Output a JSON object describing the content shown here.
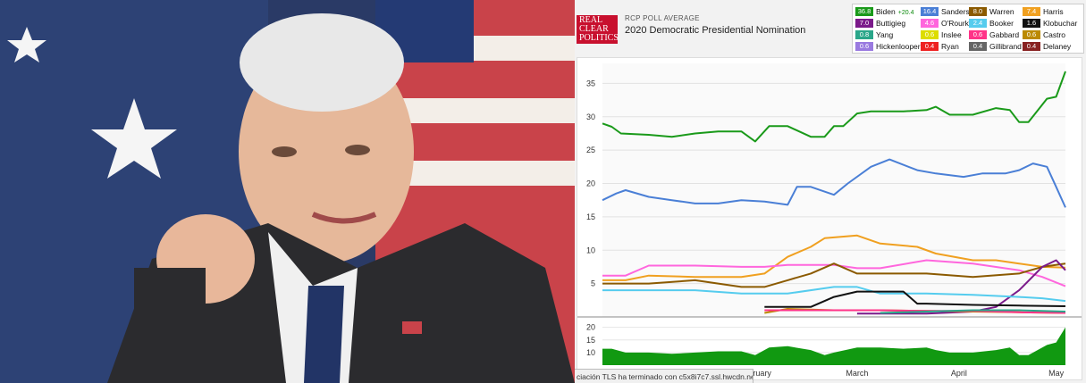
{
  "header": {
    "logo_lines": [
      "REAL",
      "CLEAR",
      "POLITICS"
    ],
    "poll_label": "RCP POLL AVERAGE",
    "title": "2020 Democratic Presidential Nomination"
  },
  "status_bar": {
    "text": "ciación TLS ha terminado con c5x8i7c7.ssl.hwcdn.net..."
  },
  "chart_data": {
    "type": "line",
    "title": "2020 Democratic Presidential Nomination",
    "y_ticks": [
      5,
      10,
      15,
      20,
      25,
      30,
      35
    ],
    "ylim": [
      0,
      38
    ],
    "x_labels": [
      "February",
      "March",
      "April",
      "May"
    ],
    "x_label_positions": [
      0.33,
      0.55,
      0.77,
      0.98
    ],
    "legend": [
      {
        "name": "Biden",
        "value": "36.8",
        "change": "+20.4",
        "color": "#1a9a1a"
      },
      {
        "name": "Sanders",
        "value": "16.4",
        "color": "#4a7fd6"
      },
      {
        "name": "Warren",
        "value": "8.0",
        "color": "#8b5a00"
      },
      {
        "name": "Harris",
        "value": "7.4",
        "color": "#f0a020"
      },
      {
        "name": "Buttigieg",
        "value": "7.0",
        "color": "#7b1a8a"
      },
      {
        "name": "O'Rourke",
        "value": "4.6",
        "color": "#ff66dd"
      },
      {
        "name": "Booker",
        "value": "2.4",
        "color": "#55ccee"
      },
      {
        "name": "Klobuchar",
        "value": "1.6",
        "color": "#111111"
      },
      {
        "name": "Yang",
        "value": "0.8",
        "color": "#2aa68a"
      },
      {
        "name": "Inslee",
        "value": "0.6",
        "color": "#dddd00"
      },
      {
        "name": "Gabbard",
        "value": "0.6",
        "color": "#ff3388"
      },
      {
        "name": "Castro",
        "value": "0.6",
        "color": "#bb8a00"
      },
      {
        "name": "Hickenlooper",
        "value": "0.6",
        "color": "#9a7ae0"
      },
      {
        "name": "Ryan",
        "value": "0.4",
        "color": "#ee2222"
      },
      {
        "name": "Gillibrand",
        "value": "0.4",
        "color": "#666666"
      },
      {
        "name": "Delaney",
        "value": "0.4",
        "color": "#882222"
      }
    ],
    "series": [
      {
        "name": "Biden",
        "color": "#1a9a1a",
        "x": [
          0,
          0.02,
          0.04,
          0.1,
          0.15,
          0.2,
          0.25,
          0.3,
          0.33,
          0.36,
          0.4,
          0.45,
          0.48,
          0.5,
          0.52,
          0.55,
          0.58,
          0.65,
          0.7,
          0.72,
          0.75,
          0.8,
          0.85,
          0.88,
          0.9,
          0.92,
          0.96,
          0.98,
          1.0
        ],
        "y": [
          29,
          28.5,
          27.5,
          27.3,
          27,
          27.5,
          27.8,
          27.8,
          26.3,
          28.6,
          28.6,
          27,
          27,
          28.6,
          28.6,
          30.5,
          30.8,
          30.8,
          31,
          31.5,
          30.3,
          30.3,
          31.3,
          31,
          29.2,
          29.2,
          32.7,
          33,
          36.8
        ]
      },
      {
        "name": "Sanders",
        "color": "#4a7fd6",
        "x": [
          0,
          0.03,
          0.05,
          0.1,
          0.15,
          0.2,
          0.25,
          0.3,
          0.35,
          0.4,
          0.42,
          0.45,
          0.5,
          0.53,
          0.58,
          0.62,
          0.68,
          0.72,
          0.78,
          0.82,
          0.87,
          0.9,
          0.93,
          0.96,
          0.98,
          1.0
        ],
        "y": [
          17.5,
          18.5,
          19,
          18,
          17.5,
          17,
          17,
          17.5,
          17.3,
          16.8,
          19.5,
          19.5,
          18.3,
          20,
          22.5,
          23.6,
          22,
          21.5,
          21,
          21.5,
          21.5,
          22,
          23,
          22.5,
          19.5,
          16.4
        ]
      },
      {
        "name": "Harris",
        "color": "#f0a020",
        "x": [
          0,
          0.05,
          0.1,
          0.2,
          0.3,
          0.35,
          0.4,
          0.45,
          0.48,
          0.55,
          0.6,
          0.68,
          0.72,
          0.8,
          0.85,
          0.9,
          0.95,
          1.0
        ],
        "y": [
          5.5,
          5.5,
          6.2,
          6,
          6,
          6.5,
          9,
          10.5,
          11.8,
          12.2,
          11,
          10.5,
          9.5,
          8.5,
          8.5,
          8,
          7.5,
          7.4
        ]
      },
      {
        "name": "O'Rourke",
        "color": "#ff66dd",
        "x": [
          0,
          0.05,
          0.1,
          0.2,
          0.3,
          0.35,
          0.4,
          0.5,
          0.55,
          0.6,
          0.7,
          0.8,
          0.9,
          0.95,
          1.0
        ],
        "y": [
          6.2,
          6.2,
          7.7,
          7.7,
          7.5,
          7.5,
          7.8,
          7.8,
          7.3,
          7.3,
          8.5,
          8,
          7,
          6,
          4.6
        ]
      },
      {
        "name": "Warren",
        "color": "#8b5a00",
        "x": [
          0,
          0.1,
          0.2,
          0.3,
          0.35,
          0.4,
          0.45,
          0.5,
          0.55,
          0.6,
          0.7,
          0.8,
          0.9,
          0.95,
          1.0
        ],
        "y": [
          5,
          5,
          5.5,
          4.5,
          4.5,
          5.5,
          6.5,
          8,
          6.5,
          6.5,
          6.5,
          6,
          6.5,
          7.5,
          8
        ]
      },
      {
        "name": "Buttigieg",
        "color": "#7b1a8a",
        "x": [
          0.55,
          0.6,
          0.7,
          0.8,
          0.85,
          0.9,
          0.95,
          0.98,
          1.0
        ],
        "y": [
          0.5,
          0.5,
          0.5,
          0.8,
          1.5,
          4,
          7.5,
          8.5,
          7
        ]
      },
      {
        "name": "Booker",
        "color": "#55ccee",
        "x": [
          0,
          0.1,
          0.2,
          0.3,
          0.4,
          0.5,
          0.55,
          0.6,
          0.7,
          0.8,
          0.9,
          0.95,
          1.0
        ],
        "y": [
          4,
          4,
          4,
          3.5,
          3.5,
          4.5,
          4.5,
          3.5,
          3.5,
          3.3,
          3,
          2.8,
          2.4
        ]
      },
      {
        "name": "Klobuchar",
        "color": "#111111",
        "x": [
          0.35,
          0.45,
          0.5,
          0.55,
          0.6,
          0.65,
          0.68,
          0.7,
          0.8,
          0.9,
          1.0
        ],
        "y": [
          1.5,
          1.5,
          3,
          3.8,
          3.8,
          3.8,
          2,
          2,
          1.8,
          1.7,
          1.6
        ]
      },
      {
        "name": "Castro",
        "color": "#bb8a00",
        "x": [
          0.35,
          0.4,
          0.5,
          0.6,
          0.7,
          0.8,
          0.9,
          1.0
        ],
        "y": [
          0.6,
          1.2,
          1,
          1,
          0.9,
          0.8,
          0.7,
          0.6
        ]
      },
      {
        "name": "Gabbard",
        "color": "#ff3388",
        "x": [
          0.35,
          0.5,
          0.6,
          0.7,
          0.8,
          0.9,
          1.0
        ],
        "y": [
          1,
          1,
          1,
          0.9,
          0.9,
          0.7,
          0.6
        ]
      },
      {
        "name": "Yang",
        "color": "#2aa68a",
        "x": [
          0.6,
          0.7,
          0.8,
          0.9,
          1.0
        ],
        "y": [
          0.6,
          0.8,
          1,
          1,
          0.8
        ]
      }
    ],
    "secondary": {
      "y_ticks": [
        10,
        15,
        20
      ],
      "ylim": [
        5,
        22
      ],
      "color": "#119911",
      "x": [
        0,
        0.02,
        0.05,
        0.1,
        0.15,
        0.2,
        0.25,
        0.3,
        0.33,
        0.36,
        0.4,
        0.45,
        0.48,
        0.5,
        0.55,
        0.6,
        0.65,
        0.7,
        0.72,
        0.75,
        0.8,
        0.85,
        0.88,
        0.9,
        0.92,
        0.96,
        0.98,
        1.0
      ],
      "y": [
        11.5,
        11.5,
        10,
        10,
        9.5,
        10,
        10.5,
        10.5,
        9,
        12,
        12.5,
        11,
        9,
        10,
        12,
        12,
        11.5,
        12,
        11,
        10,
        10,
        11,
        12,
        9,
        9,
        13,
        14,
        20
      ]
    }
  }
}
